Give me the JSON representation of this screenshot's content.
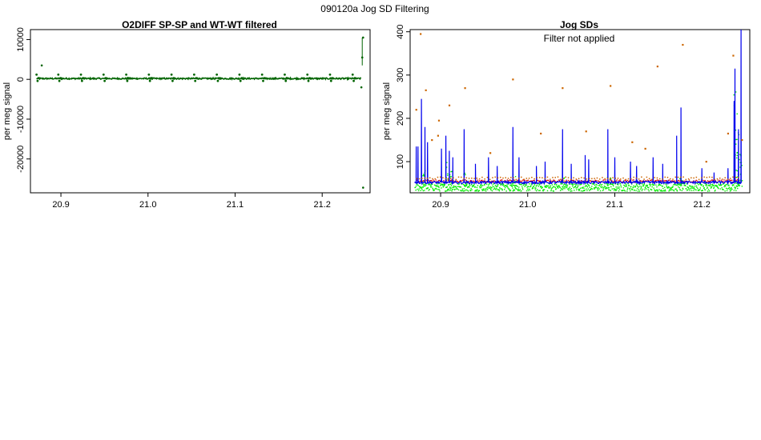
{
  "figure": {
    "suptitle": "090120a   Jog SD Filtering"
  },
  "chart_data": [
    {
      "type": "scatter",
      "title": "O2DIFF SP-SP and WT-WT filtered",
      "xlabel": "",
      "ylabel": "per meg signal",
      "xlim": [
        20.865,
        21.255
      ],
      "ylim": [
        -28500,
        12500
      ],
      "xticks": [
        "20.9",
        "21.0",
        "21.1",
        "21.2"
      ],
      "xtick_values": [
        20.9,
        21.0,
        21.1,
        21.2
      ],
      "yticks": [
        "10000",
        "0",
        "-10000",
        "-20000"
      ],
      "ytick_values": [
        10000,
        0,
        -10000,
        -20000
      ],
      "grid": false,
      "series": [
        {
          "color": "#006400",
          "baseline": 200,
          "block_starts": [
            20.872,
            20.897,
            20.923,
            20.949,
            20.975,
            21.001,
            21.027,
            21.053,
            21.079,
            21.105,
            21.131,
            21.157,
            21.183,
            21.209,
            21.235
          ],
          "block_pattern": [
            1200,
            -400,
            300,
            250
          ],
          "outliers": [
            {
              "x": 20.878,
              "y": 3500
            },
            {
              "x": 21.247,
              "y": 10500
            },
            {
              "x": 21.247,
              "y": -27200
            },
            {
              "x": 21.246,
              "y": 5500
            },
            {
              "x": 21.245,
              "y": -2000
            }
          ]
        }
      ]
    },
    {
      "type": "line",
      "title": "Jog SDs",
      "annotation": "Filter not applied",
      "xlabel": "",
      "ylabel": "per meg signal",
      "xlim": [
        20.865,
        21.255
      ],
      "ylim": [
        28,
        405
      ],
      "xticks": [
        "20.9",
        "21.0",
        "21.1",
        "21.2"
      ],
      "xtick_values": [
        20.9,
        21.0,
        21.1,
        21.2
      ],
      "yticks": [
        "100",
        "200",
        "300",
        "400"
      ],
      "ytick_values": [
        100,
        200,
        300,
        400
      ],
      "grid": false,
      "series": [
        {
          "kind": "line",
          "color": "#0000ee",
          "baseline": 52,
          "spikes": [
            {
              "x": 20.872,
              "y": 135
            },
            {
              "x": 20.874,
              "y": 135
            },
            {
              "x": 20.878,
              "y": 245
            },
            {
              "x": 20.882,
              "y": 180
            },
            {
              "x": 20.885,
              "y": 145
            },
            {
              "x": 20.901,
              "y": 130
            },
            {
              "x": 20.906,
              "y": 160
            },
            {
              "x": 20.91,
              "y": 125
            },
            {
              "x": 20.914,
              "y": 110
            },
            {
              "x": 20.927,
              "y": 175
            },
            {
              "x": 20.94,
              "y": 95
            },
            {
              "x": 20.955,
              "y": 110
            },
            {
              "x": 20.965,
              "y": 90
            },
            {
              "x": 20.983,
              "y": 180
            },
            {
              "x": 20.99,
              "y": 110
            },
            {
              "x": 21.01,
              "y": 90
            },
            {
              "x": 21.02,
              "y": 100
            },
            {
              "x": 21.04,
              "y": 175
            },
            {
              "x": 21.05,
              "y": 95
            },
            {
              "x": 21.066,
              "y": 115
            },
            {
              "x": 21.07,
              "y": 105
            },
            {
              "x": 21.092,
              "y": 175
            },
            {
              "x": 21.1,
              "y": 110
            },
            {
              "x": 21.118,
              "y": 100
            },
            {
              "x": 21.125,
              "y": 90
            },
            {
              "x": 21.144,
              "y": 110
            },
            {
              "x": 21.155,
              "y": 95
            },
            {
              "x": 21.171,
              "y": 160
            },
            {
              "x": 21.176,
              "y": 225
            },
            {
              "x": 21.2,
              "y": 85
            },
            {
              "x": 21.214,
              "y": 75
            },
            {
              "x": 21.23,
              "y": 85
            },
            {
              "x": 21.237,
              "y": 240
            },
            {
              "x": 21.238,
              "y": 315
            },
            {
              "x": 21.242,
              "y": 175
            },
            {
              "x": 21.245,
              "y": 420
            }
          ]
        },
        {
          "kind": "points",
          "color": "#00ee00",
          "baseline": 42,
          "spikes": [
            {
              "x": 20.88,
              "y": 90
            },
            {
              "x": 20.907,
              "y": 100
            },
            {
              "x": 20.912,
              "y": 80
            },
            {
              "x": 20.928,
              "y": 75
            },
            {
              "x": 20.984,
              "y": 75
            },
            {
              "x": 21.04,
              "y": 65
            },
            {
              "x": 21.093,
              "y": 70
            },
            {
              "x": 21.175,
              "y": 65
            },
            {
              "x": 21.238,
              "y": 270
            },
            {
              "x": 21.24,
              "y": 195
            },
            {
              "x": 21.242,
              "y": 130
            },
            {
              "x": 21.244,
              "y": 120
            }
          ]
        },
        {
          "kind": "points",
          "color": "#dd0000",
          "baseline": 55,
          "spikes": []
        },
        {
          "kind": "points",
          "color": "#cc6600",
          "baseline": 60,
          "outliers": [
            {
              "x": 20.877,
              "y": 395
            },
            {
              "x": 20.883,
              "y": 265
            },
            {
              "x": 20.89,
              "y": 150
            },
            {
              "x": 20.897,
              "y": 160
            },
            {
              "x": 20.91,
              "y": 230
            },
            {
              "x": 20.928,
              "y": 270
            },
            {
              "x": 20.957,
              "y": 120
            },
            {
              "x": 20.983,
              "y": 290
            },
            {
              "x": 21.015,
              "y": 165
            },
            {
              "x": 21.04,
              "y": 270
            },
            {
              "x": 21.067,
              "y": 170
            },
            {
              "x": 21.095,
              "y": 275
            },
            {
              "x": 21.12,
              "y": 145
            },
            {
              "x": 21.135,
              "y": 130
            },
            {
              "x": 21.149,
              "y": 320
            },
            {
              "x": 21.178,
              "y": 370
            },
            {
              "x": 21.205,
              "y": 100
            },
            {
              "x": 21.23,
              "y": 165
            },
            {
              "x": 21.236,
              "y": 345
            },
            {
              "x": 21.246,
              "y": 150
            },
            {
              "x": 20.872,
              "y": 220
            },
            {
              "x": 20.898,
              "y": 195
            }
          ]
        }
      ]
    }
  ]
}
